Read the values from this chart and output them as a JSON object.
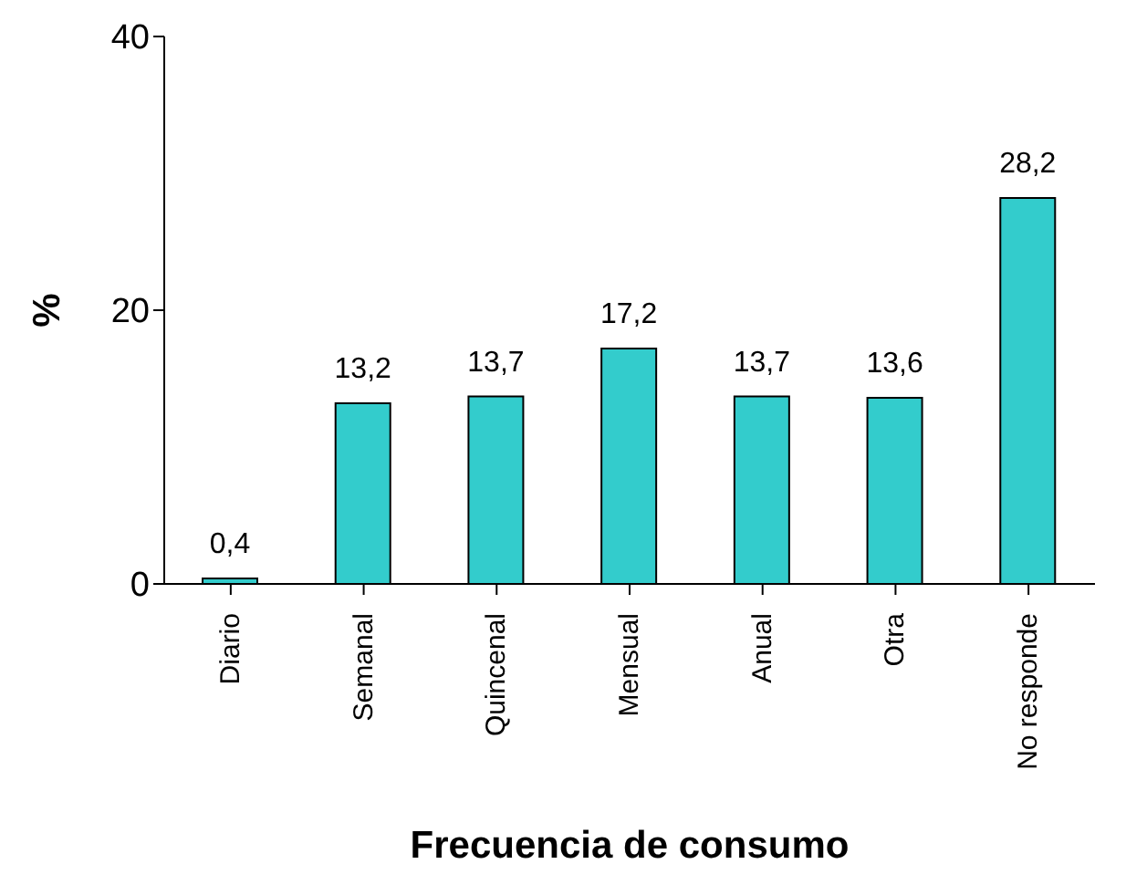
{
  "chart_data": {
    "type": "bar",
    "xlabel": "Frecuencia de consumo",
    "ylabel": "%",
    "categories": [
      "Diario",
      "Semanal",
      "Quincenal",
      "Mensual",
      "Anual",
      "Otra",
      "No responde"
    ],
    "values": [
      0.4,
      13.2,
      13.7,
      17.2,
      13.7,
      13.6,
      28.2
    ],
    "value_labels": [
      "0,4",
      "13,2",
      "13,7",
      "17,2",
      "13,7",
      "13,6",
      "28,2"
    ],
    "color": "#33cccc",
    "ylim": [
      0,
      40
    ],
    "yticks": [
      0,
      20,
      40
    ],
    "grid": false,
    "legend": false
  }
}
